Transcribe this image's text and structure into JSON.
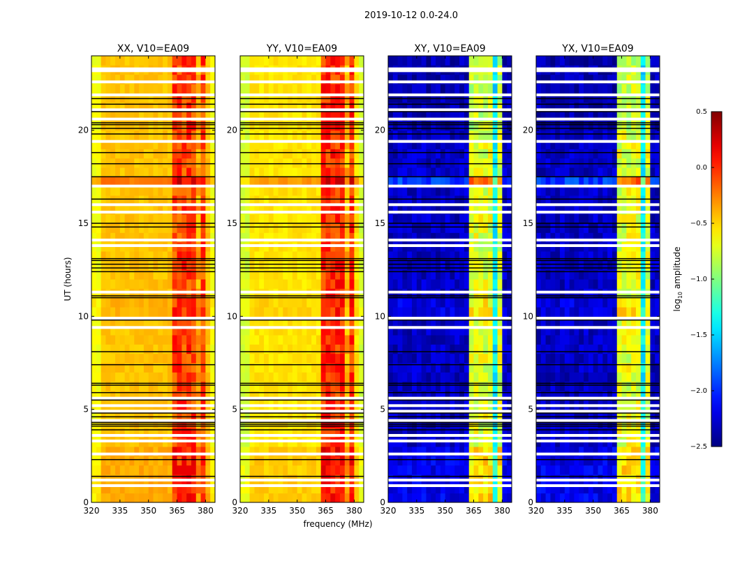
{
  "chart_data": {
    "type": "heatmap",
    "title": "2019-10-12 0.0-24.0",
    "xlabel": "frequency (MHz)",
    "ylabel": "UT (hours)",
    "xlim": [
      320,
      385
    ],
    "ylim": [
      0,
      24
    ],
    "x_ticks": [
      "320",
      "335",
      "350",
      "365",
      "380"
    ],
    "x_tick_values": [
      320,
      335,
      350,
      365,
      380
    ],
    "y_ticks": [
      "0",
      "5",
      "10",
      "15",
      "20"
    ],
    "y_tick_values": [
      0,
      5,
      10,
      15,
      20
    ],
    "colormap": "jet",
    "colorbar": {
      "label_prefix": "log",
      "label_sub": "10",
      "label_suffix": " amplitude",
      "range": [
        -2.5,
        0.5
      ],
      "ticks": [
        "0.5",
        "0.0",
        "−0.5",
        "−1.0",
        "−1.5",
        "−2.0",
        "−2.5"
      ],
      "tick_values": [
        0.5,
        0.0,
        -0.5,
        -1.0,
        -1.5,
        -2.0,
        -2.5
      ]
    },
    "band_columns_mhz": [
      [
        363,
        367
      ],
      [
        368,
        372
      ],
      [
        373,
        376
      ],
      [
        377,
        380
      ]
    ],
    "panels": [
      {
        "title": "XX, V10=EA09",
        "base": -0.45,
        "band": -0.1,
        "gap": -0.35
      },
      {
        "title": "YY, V10=EA09",
        "base": -0.55,
        "band": -0.05,
        "gap": -0.4
      },
      {
        "title": "XY, V10=EA09",
        "base": -2.3,
        "band": -0.75,
        "gap": -1.4
      },
      {
        "title": "YX, V10=EA09",
        "base": -2.3,
        "band": -0.75,
        "gap": -1.4
      }
    ],
    "row_features": [
      {
        "hours": [
          23.6,
          24.0
        ],
        "offset": 0.35
      },
      {
        "hours": [
          17.0,
          17.5
        ],
        "offset": 0.45
      },
      {
        "hours": [
          0.0,
          3.0
        ],
        "offset": 0.15
      },
      {
        "hours": [
          10.0,
          11.0
        ],
        "offset": 0.1
      }
    ],
    "flagged_blank_hours": [
      23.3,
      23.2,
      22.6,
      21.9,
      21.1,
      20.6,
      19.4,
      17.0,
      16.0,
      15.6,
      14.1,
      13.8,
      11.3,
      9.9,
      9.4,
      5.6,
      5.2,
      4.9,
      4.4,
      3.6,
      3.3,
      2.6,
      1.2,
      0.9
    ],
    "flagged_black_hours": [
      21.7,
      21.4,
      21.0,
      20.4,
      20.3,
      20.1,
      19.8,
      18.8,
      18.2,
      17.5,
      16.3,
      15.0,
      14.8,
      13.1,
      13.0,
      12.8,
      12.6,
      12.4,
      11.1,
      11.0,
      9.8,
      8.1,
      7.4,
      6.4,
      6.3,
      5.9,
      5.5,
      4.8,
      4.6,
      4.3,
      4.2,
      4.1,
      3.9,
      2.3,
      1.4
    ]
  }
}
